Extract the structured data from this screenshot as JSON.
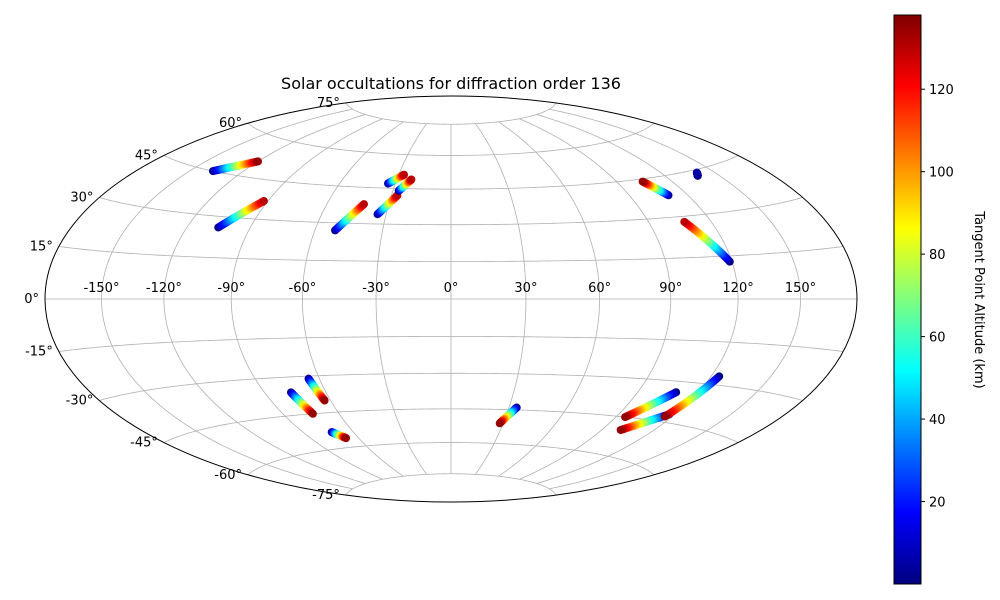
{
  "chart_data": {
    "type": "scatter",
    "projection": "hammer",
    "title": "Solar occultations for diffraction order 136",
    "grid": true,
    "lon_ticks": [
      -150,
      -120,
      -90,
      -60,
      -30,
      0,
      30,
      60,
      90,
      120,
      150
    ],
    "lon_tick_labels": [
      "-150°",
      "-120°",
      "-90°",
      "-60°",
      "-30°",
      "0°",
      "30°",
      "60°",
      "90°",
      "120°",
      "150°"
    ],
    "lat_ticks": [
      -75,
      -60,
      -45,
      -30,
      -15,
      0,
      15,
      30,
      45,
      60,
      75
    ],
    "lat_tick_labels": [
      "-75°",
      "-60°",
      "-45°",
      "-30°",
      "-15°",
      "0°",
      "15°",
      "30°",
      "45°",
      "60°",
      "75°"
    ],
    "colormap": "jet",
    "colorbar": {
      "label": "Tangent Point Altitude (km)",
      "range": [
        0,
        138
      ],
      "ticks": [
        20,
        40,
        60,
        80,
        100,
        120
      ],
      "tick_labels": [
        "20",
        "40",
        "60",
        "80",
        "100",
        "120"
      ],
      "colors": [
        "#00007f",
        "#0000ff",
        "#007fff",
        "#00ffff",
        "#7fff7f",
        "#ffff00",
        "#ff7f00",
        "#ff0000",
        "#7f0000"
      ]
    },
    "series": [
      {
        "lon_start": -137,
        "lat_start": 45,
        "lon_end": -120,
        "lat_end": 51,
        "alt_start": 0,
        "alt_end": 135
      },
      {
        "lon_start": -105,
        "lat_start": 26,
        "lon_end": -92,
        "lat_end": 37,
        "alt_start": 0,
        "alt_end": 130
      },
      {
        "lon_start": -51,
        "lat_start": 27,
        "lon_end": -42,
        "lat_end": 38,
        "alt_start": 0,
        "alt_end": 130
      },
      {
        "lon_start": -34,
        "lat_start": 47,
        "lon_end": -27,
        "lat_end": 51,
        "alt_start": 0,
        "alt_end": 130
      },
      {
        "lon_start": -34,
        "lat_start": 34,
        "lon_end": -27,
        "lat_end": 42,
        "alt_start": 0,
        "alt_end": 130
      },
      {
        "lon_start": -27,
        "lat_start": 44,
        "lon_end": -22,
        "lat_end": 49,
        "alt_start": 0,
        "alt_end": 130
      },
      {
        "lon_start": 110,
        "lat_start": 38,
        "lon_end": 104,
        "lat_end": 44,
        "alt_start": 0,
        "alt_end": 135
      },
      {
        "lon_start": 119,
        "lat_start": 13,
        "lon_end": 107,
        "lat_end": 28,
        "alt_start": 0,
        "alt_end": 130
      },
      {
        "lon_start": 138,
        "lat_start": 43,
        "lon_end": 140,
        "lat_end": 44,
        "alt_start": 0,
        "alt_end": 5
      },
      {
        "lon_start": -77,
        "lat_start": -36,
        "lon_end": -74,
        "lat_end": -45,
        "alt_start": 0,
        "alt_end": 135
      },
      {
        "lon_start": -65,
        "lat_start": -31,
        "lon_end": -63,
        "lat_end": -40,
        "alt_start": 0,
        "alt_end": 135
      },
      {
        "lon_start": -73,
        "lat_start": -53,
        "lon_end": -68,
        "lat_end": -56,
        "alt_start": 0,
        "alt_end": 135
      },
      {
        "lon_start": 34,
        "lat_start": -44,
        "lon_end": 28,
        "lat_end": -51,
        "alt_start": 0,
        "alt_end": 135
      },
      {
        "lon_start": 109,
        "lat_start": -34,
        "lon_end": 95,
        "lat_end": -45,
        "alt_start": 0,
        "alt_end": 135
      },
      {
        "lon_start": 117,
        "lat_start": -42,
        "lon_end": 101,
        "lat_end": -50,
        "alt_start": 0,
        "alt_end": 135
      },
      {
        "lon_start": 124,
        "lat_start": -27,
        "lon_end": 116,
        "lat_end": -43,
        "alt_start": 0,
        "alt_end": 135
      }
    ]
  }
}
